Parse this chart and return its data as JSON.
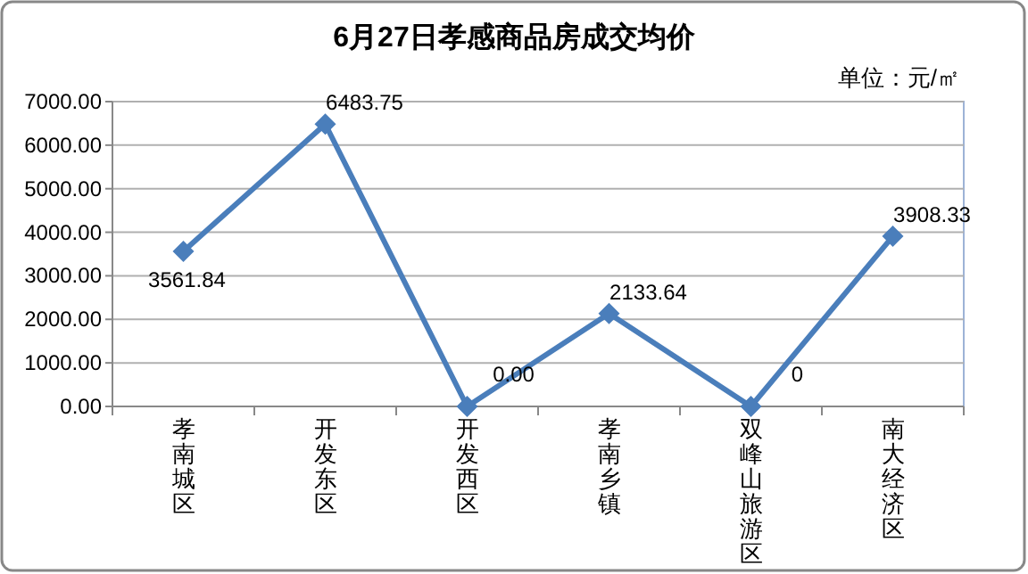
{
  "chart_data": {
    "type": "line",
    "title": "6月27日孝感商品房成交均价",
    "annotations": [
      "单位：元/㎡"
    ],
    "categories": [
      "孝南城区",
      "开发东区",
      "开发西区",
      "孝南乡镇",
      "双峰山旅游区",
      "南大经济区"
    ],
    "series": [
      {
        "color": "#4a7ebb",
        "values": [
          3561.84,
          6483.75,
          0,
          2133.64,
          0,
          3908.33
        ],
        "value_labels": [
          "3561.84",
          "6483.75",
          "0.00",
          "2133.64",
          "0",
          "3908.33"
        ]
      }
    ],
    "ylim": [
      0,
      7000
    ],
    "yticks": [
      {
        "value": 0,
        "label": "0.00"
      },
      {
        "value": 1000,
        "label": "1000.00"
      },
      {
        "value": 2000,
        "label": "2000.00"
      },
      {
        "value": 3000,
        "label": "3000.00"
      },
      {
        "value": 4000,
        "label": "4000.00"
      },
      {
        "value": 5000,
        "label": "5000.00"
      },
      {
        "value": 6000,
        "label": "6000.00"
      },
      {
        "value": 7000,
        "label": "7000.00"
      }
    ],
    "grid": "y",
    "marker": "diamond",
    "line_style": "solid"
  }
}
